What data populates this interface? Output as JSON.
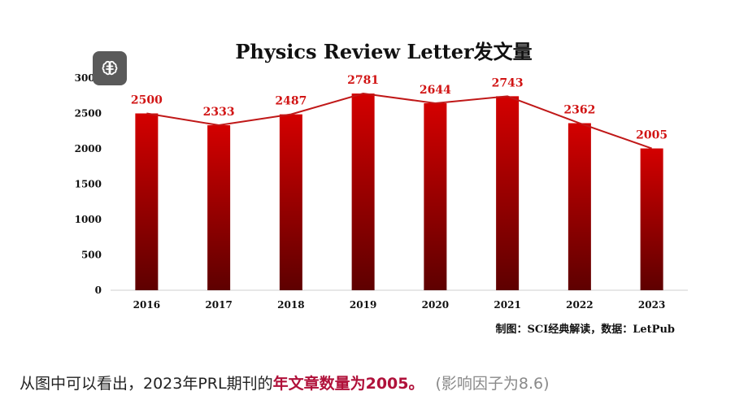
{
  "chart_data": {
    "type": "bar",
    "title": "Physics Review Letter发文量",
    "categories": [
      "2016",
      "2017",
      "2018",
      "2019",
      "2020",
      "2021",
      "2022",
      "2023"
    ],
    "values": [
      2500,
      2333,
      2487,
      2781,
      2644,
      2743,
      2362,
      2005
    ],
    "data_labels": [
      "2500",
      "2333",
      "2487",
      "2781",
      "2644",
      "2743",
      "2362",
      "2005"
    ],
    "y_ticks": [
      "0",
      "500",
      "1000",
      "1500",
      "2000",
      "2500",
      "3000"
    ],
    "ylim": [
      0,
      3000
    ],
    "trend_line": true,
    "grid": false,
    "colors": {
      "bar_top": "#d40000",
      "bar_bottom": "#5e0000",
      "line": "#c01818",
      "label": "#d11414"
    }
  },
  "source_note": "制图：SCI经典解读，数据：LetPub",
  "toolbar": {
    "icon": "brain-icon"
  },
  "caption": {
    "prefix": "从图中可以看出，2023年PRL期刊的",
    "highlight": "年文章数量为2005。",
    "aside": "(影响因子为8.6)"
  }
}
